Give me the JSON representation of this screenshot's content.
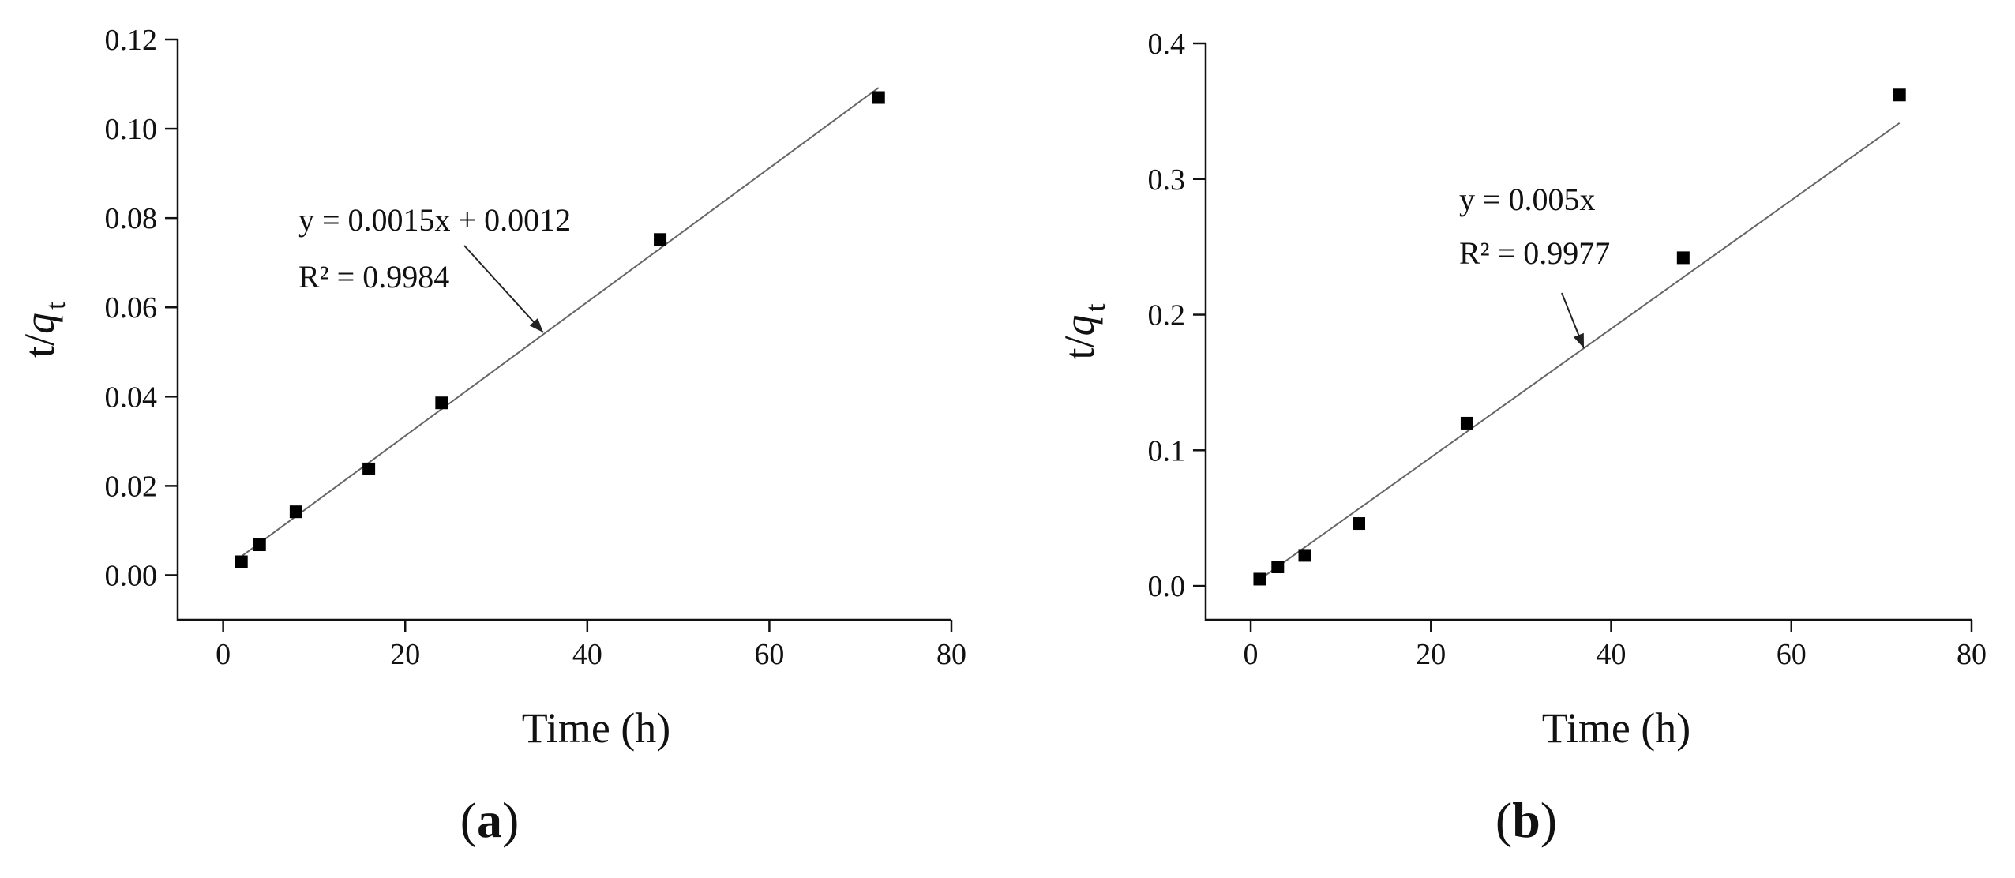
{
  "chart_data": [
    {
      "type": "scatter",
      "panel_label": "a",
      "xlabel": "Time (h)",
      "ylabel_main": "t/",
      "ylabel_italic": "q",
      "ylabel_sub": "t",
      "xlim": [
        -5,
        80
      ],
      "ylim": [
        -0.01,
        0.12
      ],
      "xticks": [
        0,
        20,
        40,
        60,
        80
      ],
      "yticks": [
        0.0,
        0.02,
        0.04,
        0.06,
        0.08,
        0.1,
        0.12
      ],
      "ytick_decimals": 2,
      "x": [
        2,
        4,
        8,
        16,
        24,
        48,
        72
      ],
      "y": [
        0.003,
        0.0068,
        0.0142,
        0.0238,
        0.0386,
        0.0752,
        0.107
      ],
      "fit": {
        "slope": 0.0015,
        "intercept": 0.0012,
        "x_range": [
          2,
          72
        ]
      },
      "equation_text": "y = 0.0015x + 0.0012",
      "r2_text": "R² = 0.9984",
      "legend": "none",
      "grid": false
    },
    {
      "type": "scatter",
      "panel_label": "b",
      "xlabel": "Time (h)",
      "ylabel_main": "t/",
      "ylabel_italic": "q",
      "ylabel_sub": "t",
      "xlim": [
        -5,
        80
      ],
      "ylim": [
        -0.025,
        0.4
      ],
      "xticks": [
        0,
        20,
        40,
        60,
        80
      ],
      "yticks": [
        0.0,
        0.1,
        0.2,
        0.3,
        0.4
      ],
      "ytick_decimals": 1,
      "x": [
        1,
        3,
        6,
        12,
        24,
        48,
        72
      ],
      "y": [
        0.005,
        0.014,
        0.0225,
        0.046,
        0.12,
        0.242,
        0.362
      ],
      "fit": {
        "slope": 0.00474,
        "intercept": 0.0,
        "x_range": [
          1,
          72
        ]
      },
      "equation_text": "y = 0.005x",
      "r2_text": "R² = 0.9977",
      "legend": "none",
      "grid": false
    }
  ]
}
